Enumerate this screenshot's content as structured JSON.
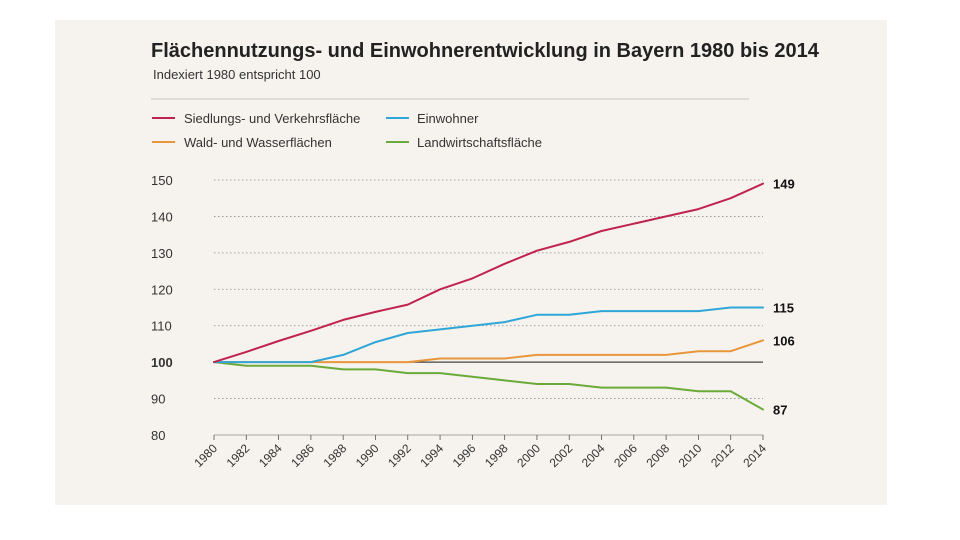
{
  "chart_data": {
    "type": "line",
    "title": "Flächennutzungs- und Einwohnerentwicklung in Bayern 1980 bis 2014",
    "subtitle": "Indexiert 1980 entspricht 100",
    "ylim": [
      80,
      150
    ],
    "yticks": [
      80,
      90,
      100,
      110,
      120,
      130,
      140,
      150
    ],
    "xlim": [
      1980,
      2014
    ],
    "xticks": [
      1980,
      1982,
      1984,
      1986,
      1988,
      1990,
      1992,
      1994,
      1996,
      1998,
      2000,
      2002,
      2004,
      2006,
      2008,
      2010,
      2012,
      2014
    ],
    "grid": "horizontal dotted",
    "legend_position": "top",
    "series": [
      {
        "name": "Siedlungs- und Verkehrsfläche",
        "color": "#c0234e",
        "end_label": "149",
        "x": [
          1980,
          1982,
          1984,
          1986,
          1988,
          1990,
          1992,
          1994,
          1996,
          1998,
          2000,
          2002,
          2004,
          2006,
          2008,
          2010,
          2012,
          2014
        ],
        "values": [
          100,
          102.8,
          105.8,
          108.6,
          111.6,
          113.8,
          115.8,
          120,
          123,
          127,
          130.6,
          133,
          136,
          138,
          140,
          142,
          145,
          149
        ]
      },
      {
        "name": "Einwohner",
        "color": "#2fa6d8",
        "end_label": "115",
        "x": [
          1980,
          1986,
          1988,
          1990,
          1992,
          1994,
          1996,
          1998,
          2000,
          2002,
          2004,
          2006,
          2008,
          2010,
          2012,
          2014
        ],
        "values": [
          100,
          100,
          102,
          105.5,
          108,
          109,
          110,
          111,
          113,
          113,
          114,
          114,
          114,
          114,
          115,
          115
        ]
      },
      {
        "name": "Wald- und Wasserflächen",
        "color": "#e8963c",
        "end_label": "106",
        "x": [
          1980,
          1992,
          1994,
          1998,
          2000,
          2008,
          2010,
          2012,
          2014
        ],
        "values": [
          100,
          100,
          101,
          101,
          102,
          102,
          103,
          103,
          106
        ]
      },
      {
        "name": "Landwirtschaftsfläche",
        "color": "#6aaa3a",
        "end_label": "87",
        "x": [
          1980,
          1982,
          1986,
          1988,
          1990,
          1992,
          1994,
          1996,
          1998,
          2000,
          2002,
          2004,
          2006,
          2008,
          2010,
          2012,
          2014
        ],
        "values": [
          100,
          99,
          99,
          98,
          98,
          97,
          97,
          96,
          95,
          94,
          94,
          93,
          93,
          93,
          92,
          92,
          87
        ]
      }
    ]
  }
}
